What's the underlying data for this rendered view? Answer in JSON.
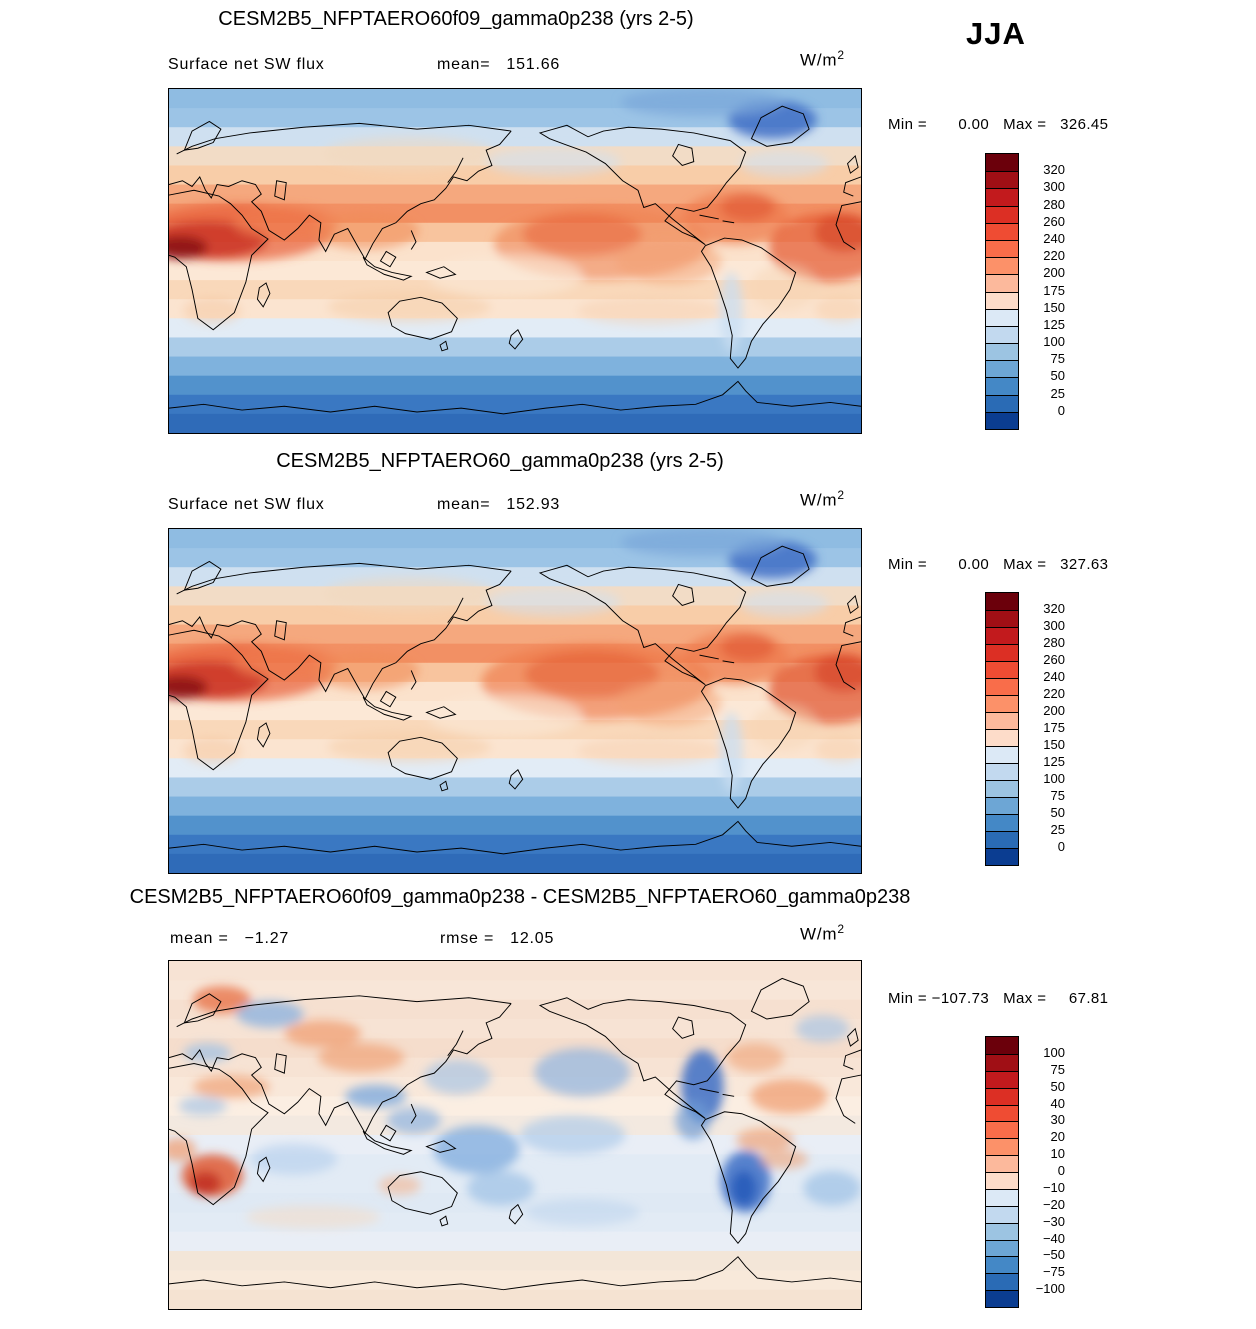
{
  "season": "JJA",
  "palette_note": "blue-red diverging",
  "chart_data": [
    {
      "type": "heatmap",
      "title": "CESM2B5_NFPTAERO60f09_gamma0p238 (yrs 2-5)",
      "field": "Surface net SW flux",
      "stats": [
        {
          "label": "mean=",
          "value": "151.66"
        }
      ],
      "units_base": "W/m",
      "units_exp": "2",
      "min_label": "Min =",
      "min": "0.00",
      "max_label": "Max =",
      "max": "326.45",
      "colorbar_ticks": [
        "320",
        "300",
        "280",
        "260",
        "240",
        "220",
        "200",
        "175",
        "150",
        "125",
        "100",
        "75",
        "50",
        "25",
        "0"
      ],
      "colorbar_colors": [
        "#6b000b",
        "#a00f15",
        "#c21a1d",
        "#dc2f24",
        "#ef4c33",
        "#f96d4a",
        "#fc9169",
        "#fcb99c",
        "#fddcc9",
        "#dce9f6",
        "#c2d9ef",
        "#9cc4e2",
        "#6da6d5",
        "#4488c6",
        "#2a6bb5",
        "#0b3d91"
      ],
      "map": {
        "bands": [
          "#8fbce2",
          "#9cc4e6",
          "#cfe0f0",
          "#f2dcc6",
          "#f8cda8",
          "#f5a87e",
          "#f29064",
          "#f8c49e",
          "#fbe2cc",
          "#fce8d6",
          "#f9d8ba",
          "#fbe4d0",
          "#e2ecf6",
          "#abcce8",
          "#7fb2dd",
          "#5292cc",
          "#3a78c2",
          "#2f6bb8"
        ],
        "blobs": [
          [
            70,
            150,
            100,
            30,
            "#e8603a",
            0.7
          ],
          [
            40,
            158,
            62,
            20,
            "#c52a1d",
            0.75
          ],
          [
            12,
            166,
            28,
            12,
            "#8c0f14",
            0.9
          ],
          [
            122,
            140,
            55,
            18,
            "#ef7c4e",
            0.65
          ],
          [
            205,
            148,
            55,
            20,
            "#f08a58",
            0.55
          ],
          [
            450,
            162,
            112,
            38,
            "#ef8352",
            0.6
          ],
          [
            430,
            152,
            62,
            22,
            "#e8603a",
            0.5
          ],
          [
            520,
            180,
            55,
            24,
            "#f3a071",
            0.5
          ],
          [
            590,
            135,
            55,
            28,
            "#ee7a4c",
            0.65
          ],
          [
            602,
            124,
            28,
            14,
            "#df5332",
            0.55
          ],
          [
            686,
            166,
            62,
            36,
            "#e4572e",
            0.7
          ],
          [
            702,
            150,
            30,
            20,
            "#d23b22",
            0.55
          ],
          [
            628,
            32,
            46,
            20,
            "#3f6fc6",
            0.85
          ],
          [
            555,
            14,
            85,
            15,
            "#7aa6da",
            0.7
          ],
          [
            250,
            68,
            90,
            18,
            "#f0d8c0",
            0.55
          ],
          [
            400,
            76,
            70,
            15,
            "#cfe0f1",
            0.55
          ],
          [
            640,
            78,
            46,
            14,
            "#cfe0f1",
            0.55
          ],
          [
            350,
            196,
            80,
            22,
            "#fbe8d6",
            0.65
          ],
          [
            585,
            234,
            12,
            42,
            "#c9def1",
            0.75
          ],
          [
            640,
            208,
            35,
            24,
            "#f6d4b4",
            0.45
          ],
          [
            250,
            228,
            85,
            16,
            "#f6cba6",
            0.5
          ],
          [
            500,
            232,
            75,
            15,
            "#f6cfae",
            0.45
          ],
          [
            45,
            232,
            30,
            14,
            "#f4c39c",
            0.45
          ],
          [
            698,
            230,
            26,
            14,
            "#f6cba6",
            0.45
          ]
        ]
      }
    },
    {
      "type": "heatmap",
      "title": "CESM2B5_NFPTAERO60_gamma0p238 (yrs 2-5)",
      "field": "Surface net SW flux",
      "stats": [
        {
          "label": "mean=",
          "value": "152.93"
        }
      ],
      "units_base": "W/m",
      "units_exp": "2",
      "min_label": "Min =",
      "min": "0.00",
      "max_label": "Max =",
      "max": "327.63",
      "colorbar_ticks": [
        "320",
        "300",
        "280",
        "260",
        "240",
        "220",
        "200",
        "175",
        "150",
        "125",
        "100",
        "75",
        "50",
        "25",
        "0"
      ],
      "colorbar_colors": [
        "#6b000b",
        "#a00f15",
        "#c21a1d",
        "#dc2f24",
        "#ef4c33",
        "#f96d4a",
        "#fc9169",
        "#fcb99c",
        "#fddcc9",
        "#dce9f6",
        "#c2d9ef",
        "#9cc4e2",
        "#6da6d5",
        "#4488c6",
        "#2a6bb5",
        "#0b3d91"
      ],
      "map": {
        "bands": [
          "#8fbce2",
          "#9cc4e6",
          "#cfe0f0",
          "#f2dcc6",
          "#f8cda8",
          "#f5a87e",
          "#f29064",
          "#f8c49e",
          "#fbe2cc",
          "#fce8d6",
          "#f9d8ba",
          "#fbe4d0",
          "#e2ecf6",
          "#abcce8",
          "#7fb2dd",
          "#5292cc",
          "#3a78c2",
          "#2f6bb8"
        ],
        "blobs": [
          [
            70,
            150,
            100,
            30,
            "#e8603a",
            0.7
          ],
          [
            40,
            158,
            62,
            20,
            "#c52a1d",
            0.75
          ],
          [
            12,
            166,
            28,
            12,
            "#8c0f14",
            0.9
          ],
          [
            122,
            140,
            55,
            18,
            "#ef7c4e",
            0.65
          ],
          [
            205,
            148,
            55,
            20,
            "#f08a58",
            0.55
          ],
          [
            445,
            160,
            120,
            40,
            "#ee7a48",
            0.65
          ],
          [
            440,
            152,
            70,
            24,
            "#e35c34",
            0.5
          ],
          [
            520,
            182,
            55,
            24,
            "#f3a071",
            0.5
          ],
          [
            590,
            135,
            55,
            28,
            "#ee7a4c",
            0.65
          ],
          [
            602,
            124,
            28,
            14,
            "#df5332",
            0.55
          ],
          [
            688,
            168,
            64,
            36,
            "#e04f28",
            0.7
          ],
          [
            702,
            150,
            30,
            20,
            "#d23b22",
            0.55
          ],
          [
            628,
            32,
            46,
            20,
            "#3f6fc6",
            0.85
          ],
          [
            555,
            14,
            85,
            15,
            "#7aa6da",
            0.7
          ],
          [
            250,
            68,
            90,
            18,
            "#f0d8c0",
            0.55
          ],
          [
            400,
            76,
            70,
            15,
            "#cfe0f1",
            0.55
          ],
          [
            640,
            78,
            46,
            14,
            "#cfe0f1",
            0.55
          ],
          [
            350,
            196,
            80,
            22,
            "#fbe8d6",
            0.65
          ],
          [
            585,
            234,
            12,
            42,
            "#c9def1",
            0.75
          ],
          [
            640,
            208,
            35,
            24,
            "#f6d4b4",
            0.45
          ],
          [
            250,
            228,
            85,
            16,
            "#f6cba6",
            0.5
          ],
          [
            500,
            232,
            75,
            15,
            "#f6cfae",
            0.45
          ],
          [
            45,
            232,
            30,
            14,
            "#f4c39c",
            0.45
          ],
          [
            698,
            230,
            26,
            14,
            "#f6cba6",
            0.45
          ]
        ]
      }
    },
    {
      "type": "heatmap",
      "title": "CESM2B5_NFPTAERO60f09_gamma0p238 - CESM2B5_NFPTAERO60_gamma0p238",
      "stats": [
        {
          "label": "mean =",
          "value": "−1.27"
        },
        {
          "label": "rmse =",
          "value": "12.05"
        }
      ],
      "units_base": "W/m",
      "units_exp": "2",
      "min_label": "Min =",
      "min": "−107.73",
      "max_label": "Max =",
      "max": "67.81",
      "colorbar_ticks": [
        "100",
        "75",
        "50",
        "40",
        "30",
        "20",
        "10",
        "0",
        "−10",
        "−20",
        "−30",
        "−40",
        "−50",
        "−75",
        "−100"
      ],
      "colorbar_colors": [
        "#6b000b",
        "#a00f15",
        "#c21a1d",
        "#dc2f24",
        "#ef4c33",
        "#f96d4a",
        "#fc9169",
        "#fcb99c",
        "#fddcc9",
        "#dce9f6",
        "#c2d9ef",
        "#9cc4e2",
        "#6da6d5",
        "#4488c6",
        "#2a6bb5",
        "#0b3d91"
      ],
      "map": {
        "bands": [
          "#f7e3d4",
          "#f8e6d8",
          "#f6e0d0",
          "#f7e3d4",
          "#f5ddcc",
          "#f7e3d4",
          "#f9e8da",
          "#fbeee2",
          "#f3e9e0",
          "#e9eef6",
          "#e2ebf5",
          "#e2ebf5",
          "#dfe9f4",
          "#e2ebf5",
          "#e9eef6",
          "#f3e6d8",
          "#f8e9da",
          "#f5e3d2"
        ],
        "blobs": [
          [
            55,
            40,
            30,
            14,
            "#e8744a",
            0.8
          ],
          [
            105,
            55,
            35,
            14,
            "#8fb4e0",
            0.8
          ],
          [
            40,
            95,
            25,
            10,
            "#9cc0e6",
            0.7
          ],
          [
            65,
            130,
            40,
            12,
            "#f0a376",
            0.7
          ],
          [
            35,
            150,
            25,
            10,
            "#9cc0e6",
            0.6
          ],
          [
            45,
            222,
            32,
            22,
            "#e05a34",
            0.85
          ],
          [
            38,
            230,
            16,
            12,
            "#bf2c1d",
            0.8
          ],
          [
            10,
            195,
            18,
            12,
            "#ef9a6c",
            0.7
          ],
          [
            130,
            205,
            45,
            16,
            "#b9d2ee",
            0.7
          ],
          [
            160,
            75,
            40,
            14,
            "#ef9a6c",
            0.7
          ],
          [
            200,
            100,
            45,
            15,
            "#f0a376",
            0.7
          ],
          [
            215,
            140,
            32,
            12,
            "#7fabdd",
            0.8
          ],
          [
            255,
            165,
            28,
            14,
            "#8fb4e0",
            0.7
          ],
          [
            300,
            120,
            35,
            18,
            "#9cc0e6",
            0.6
          ],
          [
            320,
            195,
            45,
            25,
            "#7fabdd",
            0.75
          ],
          [
            345,
            235,
            35,
            18,
            "#9cc0e6",
            0.7
          ],
          [
            430,
            115,
            50,
            25,
            "#8fb4e0",
            0.7
          ],
          [
            420,
            180,
            55,
            20,
            "#aac9ea",
            0.65
          ],
          [
            555,
            130,
            22,
            38,
            "#3c6ec5",
            0.85
          ],
          [
            545,
            165,
            18,
            20,
            "#6f9cd6",
            0.7
          ],
          [
            610,
            100,
            30,
            15,
            "#f0a376",
            0.6
          ],
          [
            645,
            140,
            40,
            18,
            "#ef9a6c",
            0.7
          ],
          [
            620,
            185,
            30,
            12,
            "#f0a376",
            0.7
          ],
          [
            600,
            228,
            26,
            32,
            "#3c6ec5",
            0.85
          ],
          [
            598,
            235,
            13,
            18,
            "#2456b8",
            0.8
          ],
          [
            640,
            205,
            25,
            10,
            "#f0a376",
            0.6
          ],
          [
            690,
            235,
            30,
            18,
            "#9cc0e6",
            0.7
          ],
          [
            680,
            70,
            28,
            14,
            "#9cc0e6",
            0.6
          ],
          [
            240,
            232,
            22,
            10,
            "#f4b490",
            0.6
          ],
          [
            430,
            260,
            60,
            14,
            "#b9d2ee",
            0.5
          ],
          [
            150,
            265,
            70,
            12,
            "#f6d9c2",
            0.5
          ]
        ]
      }
    }
  ]
}
